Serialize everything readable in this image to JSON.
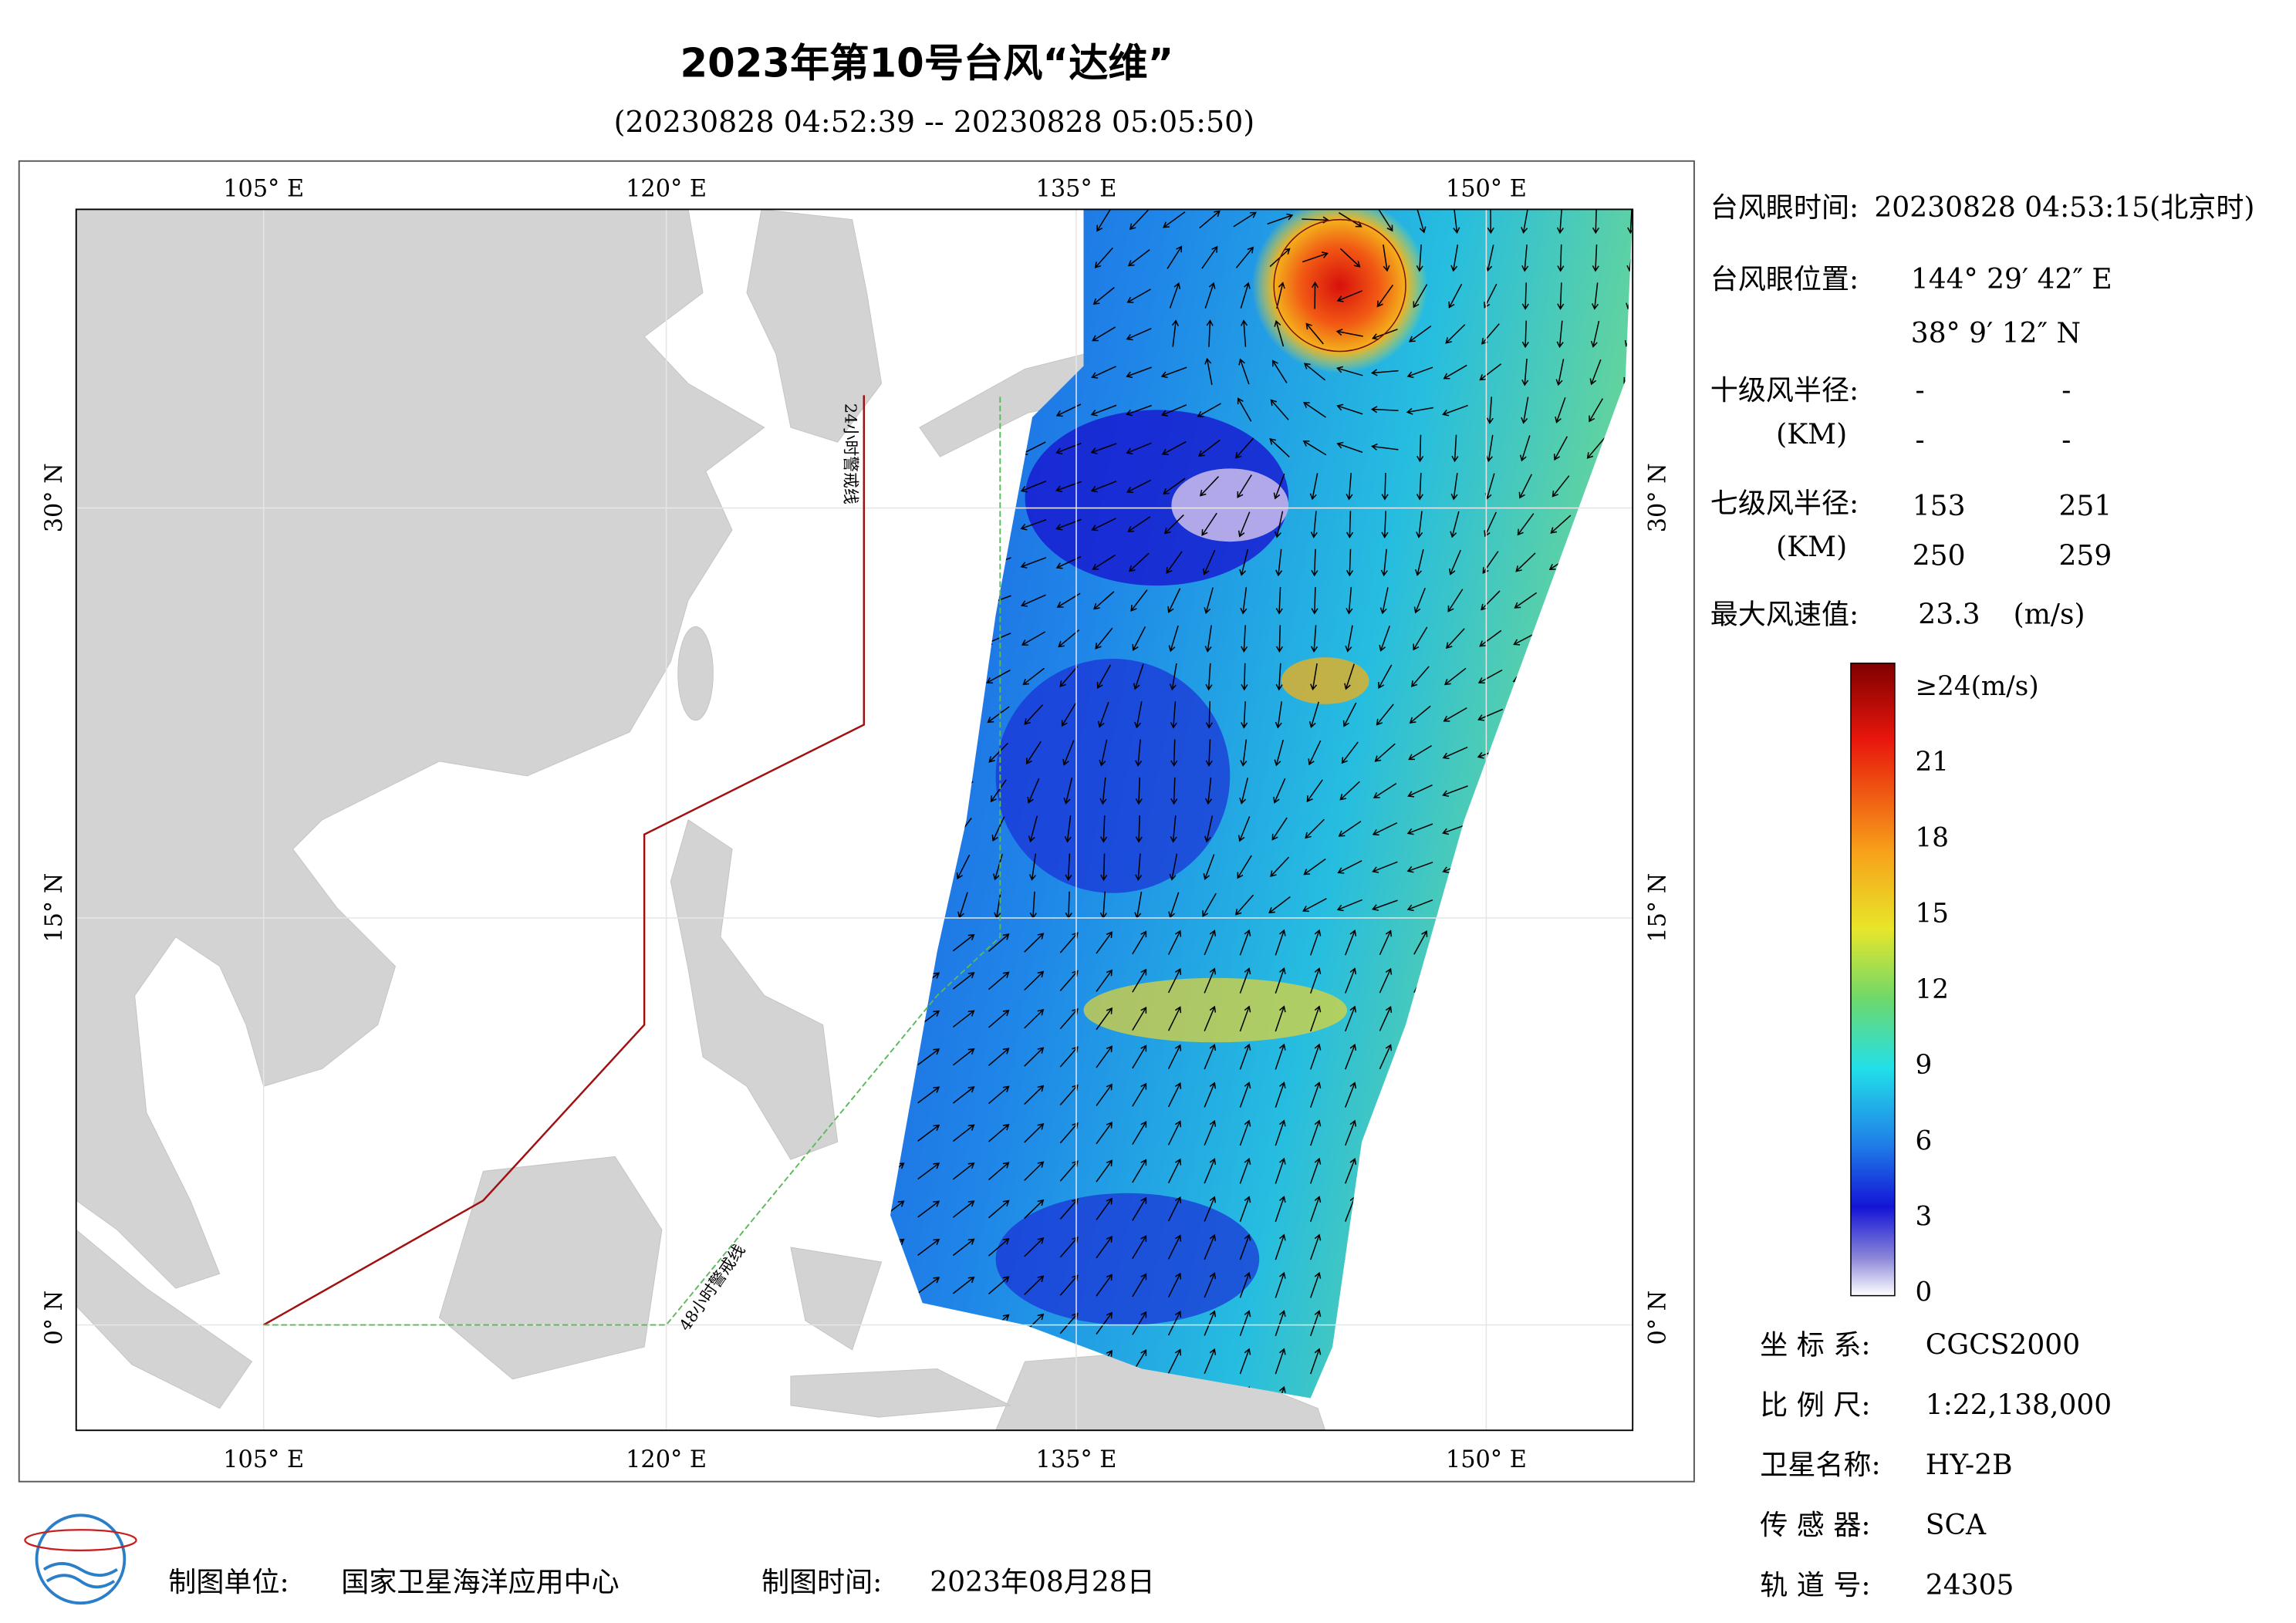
{
  "header": {
    "title": "2023年第10号台风“达维”",
    "subtitle": "(20230828 04:52:39 -- 20230828 05:05:50)"
  },
  "map": {
    "lon_labels": [
      "105° E",
      "120° E",
      "135° E",
      "150° E"
    ],
    "lat_labels": [
      "30° N",
      "15° N",
      "0° N"
    ],
    "annotations": [
      "24小时警戒线",
      "48小时警戒线"
    ]
  },
  "info": {
    "eye_time": {
      "label": "台风眼时间:",
      "value": "20230828 04:53:15(北京时)"
    },
    "eye_position": {
      "label": "台风眼位置:",
      "lon": "144° 29′ 42″ E",
      "lat": "38° 9′ 12″ N"
    },
    "r10": {
      "label": "十级风半径:",
      "unit": "(KM)",
      "values": [
        "-",
        "-",
        "-",
        "-"
      ]
    },
    "r7": {
      "label": "七级风半径:",
      "unit": "(KM)",
      "values": [
        153,
        251,
        250,
        259
      ]
    },
    "max_wind": {
      "label": "最大风速值:",
      "value": 23.3,
      "unit": "(m/s)"
    }
  },
  "colorbar": {
    "labels": [
      "≥24(m/s)",
      21,
      18,
      15,
      12,
      9,
      6,
      3,
      0
    ]
  },
  "meta": [
    {
      "label": "坐 标 系:",
      "value": "CGCS2000"
    },
    {
      "label": "比 例 尺:",
      "value": "1:22,138,000"
    },
    {
      "label": "卫星名称:",
      "value": "HY-2B"
    },
    {
      "label": "传 感 器:",
      "value": "SCA"
    },
    {
      "label": "轨 道 号:",
      "value": "24305"
    }
  ],
  "footer": {
    "org": {
      "label": "制图单位:",
      "value": "国家卫星海洋应用中心"
    },
    "date": {
      "label": "制图时间:",
      "value": "2023年08月28日"
    }
  }
}
